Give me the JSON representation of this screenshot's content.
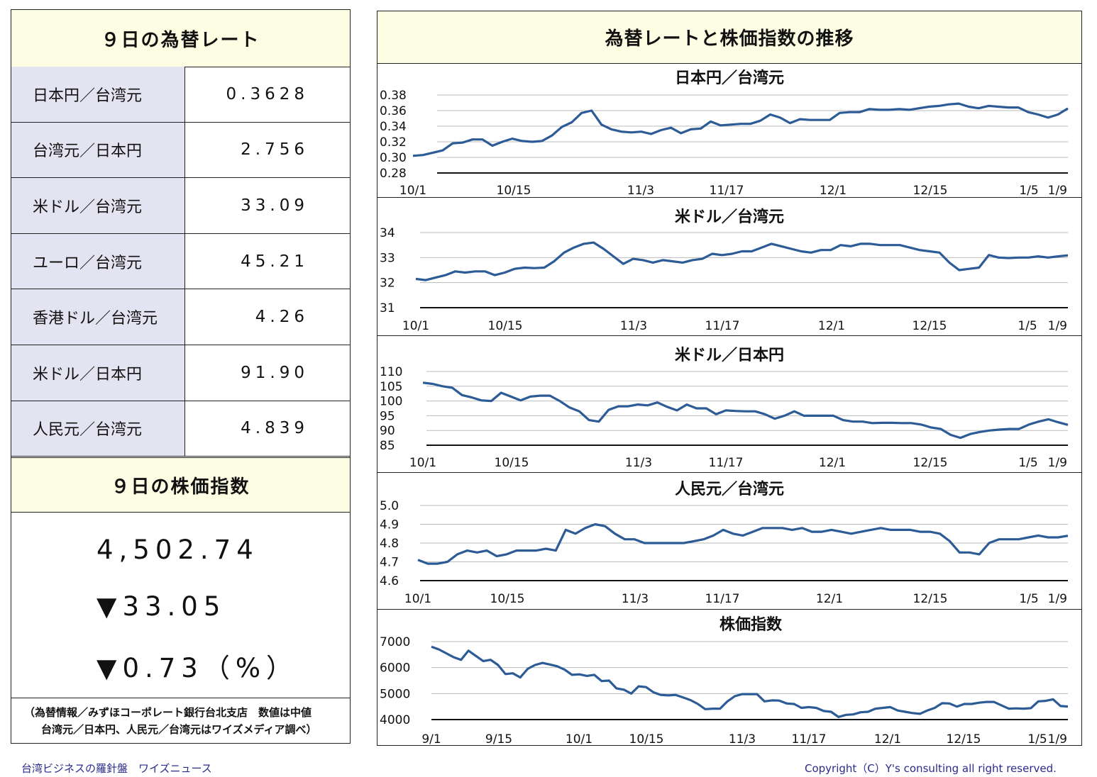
{
  "left_panel": {
    "rates_title": "９日の為替レート",
    "rates": [
      {
        "label": "日本円／台湾元",
        "value": "0.3628"
      },
      {
        "label": "台湾元／日本円",
        "value": "2.756"
      },
      {
        "label": "米ドル／台湾元",
        "value": "33.09"
      },
      {
        "label": "ユーロ／台湾元",
        "value": "45.21"
      },
      {
        "label": "香港ドル／台湾元",
        "value": "4.26"
      },
      {
        "label": "米ドル／日本円",
        "value": "91.90"
      },
      {
        "label": "人民元／台湾元",
        "value": "4.839"
      }
    ],
    "stock_title": "９日の株価指数",
    "stock_value": "4,502.74",
    "stock_change": "▼33.05",
    "stock_change_pct": "▼0.73（%）",
    "note_line1": "（為替情報／みずほコーポレート銀行台北支店　数値は中値",
    "note_line2": "台湾元／日本円、人民元／台湾元はワイズメディア調べ）"
  },
  "right_panel": {
    "title": "為替レートと株価指数の推移"
  },
  "footer": {
    "left": "台湾ビジネスの羅針盤　ワイズニュース",
    "right": "Copyright（C）Y's consulting all right reserved."
  },
  "chart_data": [
    {
      "type": "line",
      "title": "日本円／台湾元",
      "ylim": [
        0.28,
        0.38
      ],
      "yticks": [
        "0.38",
        "0.36",
        "0.34",
        "0.32",
        "0.30",
        "0.28"
      ],
      "xticks": [
        "10/1",
        "10/15",
        "11/3",
        "11/17",
        "12/1",
        "12/15",
        "1/5",
        "1/9"
      ],
      "values": [
        0.302,
        0.303,
        0.306,
        0.309,
        0.318,
        0.319,
        0.323,
        0.323,
        0.315,
        0.32,
        0.324,
        0.321,
        0.32,
        0.321,
        0.328,
        0.339,
        0.345,
        0.357,
        0.36,
        0.342,
        0.336,
        0.333,
        0.332,
        0.333,
        0.33,
        0.335,
        0.338,
        0.331,
        0.336,
        0.337,
        0.346,
        0.341,
        0.342,
        0.343,
        0.343,
        0.347,
        0.355,
        0.351,
        0.344,
        0.349,
        0.348,
        0.348,
        0.348,
        0.357,
        0.358,
        0.358,
        0.362,
        0.361,
        0.361,
        0.362,
        0.361,
        0.363,
        0.365,
        0.366,
        0.368,
        0.369,
        0.365,
        0.363,
        0.366,
        0.365,
        0.364,
        0.364,
        0.358,
        0.355,
        0.351,
        0.355,
        0.3628
      ]
    },
    {
      "type": "line",
      "title": "米ドル／台湾元",
      "ylim": [
        31,
        34
      ],
      "yticks": [
        "34",
        "33",
        "32",
        "31"
      ],
      "xticks": [
        "10/1",
        "10/15",
        "11/3",
        "11/17",
        "12/1",
        "12/15",
        "1/5",
        "1/9"
      ],
      "values": [
        32.15,
        32.1,
        32.2,
        32.3,
        32.45,
        32.4,
        32.45,
        32.45,
        32.3,
        32.4,
        32.55,
        32.6,
        32.58,
        32.6,
        32.85,
        33.2,
        33.4,
        33.55,
        33.6,
        33.35,
        33.05,
        32.75,
        32.95,
        32.9,
        32.8,
        32.9,
        32.85,
        32.8,
        32.9,
        32.95,
        33.15,
        33.1,
        33.15,
        33.25,
        33.25,
        33.4,
        33.55,
        33.45,
        33.35,
        33.25,
        33.2,
        33.3,
        33.3,
        33.5,
        33.45,
        33.55,
        33.55,
        33.5,
        33.5,
        33.5,
        33.4,
        33.3,
        33.25,
        33.2,
        32.8,
        32.5,
        32.55,
        32.6,
        33.1,
        33.0,
        32.98,
        33.0,
        33.0,
        33.05,
        33.0,
        33.05,
        33.09
      ]
    },
    {
      "type": "line",
      "title": "米ドル／日本円",
      "ylim": [
        85,
        110
      ],
      "yticks": [
        "110",
        "105",
        "100",
        "95",
        "90",
        "85"
      ],
      "xticks": [
        "10/1",
        "10/15",
        "11/3",
        "11/17",
        "12/1",
        "12/15",
        "1/5",
        "1/9"
      ],
      "values": [
        106.2,
        105.8,
        105.0,
        104.5,
        102.0,
        101.2,
        100.2,
        100.0,
        102.8,
        101.5,
        100.2,
        101.5,
        101.8,
        101.8,
        100.0,
        97.8,
        96.5,
        93.5,
        93.0,
        97.0,
        98.2,
        98.2,
        98.8,
        98.5,
        99.5,
        98.0,
        96.8,
        98.8,
        97.5,
        97.5,
        95.5,
        96.8,
        96.6,
        96.5,
        96.5,
        95.5,
        94.0,
        95.0,
        96.5,
        95.0,
        95.0,
        95.0,
        95.0,
        93.5,
        93.0,
        93.0,
        92.5,
        92.6,
        92.6,
        92.5,
        92.5,
        92.0,
        91.0,
        90.5,
        88.5,
        87.5,
        88.8,
        89.5,
        90.0,
        90.3,
        90.5,
        90.5,
        92.0,
        93.0,
        93.8,
        92.8,
        91.9
      ]
    },
    {
      "type": "line",
      "title": "人民元／台湾元",
      "ylim": [
        4.6,
        5.0
      ],
      "yticks": [
        "5.0",
        "4.9",
        "4.8",
        "4.7",
        "4.6"
      ],
      "xticks": [
        "10/1",
        "10/15",
        "11/3",
        "11/17",
        "12/1",
        "12/15",
        "1/5",
        "1/9"
      ],
      "values": [
        4.71,
        4.69,
        4.69,
        4.7,
        4.74,
        4.76,
        4.75,
        4.76,
        4.73,
        4.74,
        4.76,
        4.76,
        4.76,
        4.77,
        4.76,
        4.87,
        4.85,
        4.88,
        4.9,
        4.89,
        4.85,
        4.82,
        4.82,
        4.8,
        4.8,
        4.8,
        4.8,
        4.8,
        4.81,
        4.82,
        4.84,
        4.87,
        4.85,
        4.84,
        4.86,
        4.88,
        4.88,
        4.88,
        4.87,
        4.88,
        4.86,
        4.86,
        4.87,
        4.86,
        4.85,
        4.86,
        4.87,
        4.88,
        4.87,
        4.87,
        4.87,
        4.86,
        4.86,
        4.85,
        4.81,
        4.75,
        4.75,
        4.74,
        4.8,
        4.82,
        4.82,
        4.82,
        4.83,
        4.84,
        4.83,
        4.83,
        4.839
      ]
    },
    {
      "type": "line",
      "title": "株価指数",
      "ylim": [
        4000,
        7000
      ],
      "yticks": [
        "7000",
        "6000",
        "5000",
        "4000"
      ],
      "xticks": [
        "9/1",
        "9/15",
        "10/1",
        "10/15",
        "11/3",
        "11/17",
        "12/1",
        "12/15",
        "1/5",
        "1/9"
      ],
      "values": [
        6800,
        6700,
        6550,
        6400,
        6300,
        6650,
        6450,
        6250,
        6300,
        6100,
        5750,
        5780,
        5620,
        5950,
        6100,
        6180,
        6120,
        6050,
        5920,
        5720,
        5740,
        5680,
        5720,
        5480,
        5500,
        5200,
        5150,
        5000,
        5280,
        5250,
        5050,
        4950,
        4930,
        4950,
        4850,
        4750,
        4600,
        4400,
        4420,
        4420,
        4700,
        4900,
        4980,
        4980,
        4980,
        4700,
        4740,
        4730,
        4620,
        4600,
        4450,
        4480,
        4450,
        4330,
        4300,
        4100,
        4180,
        4200,
        4280,
        4300,
        4420,
        4450,
        4480,
        4350,
        4300,
        4250,
        4220,
        4350,
        4450,
        4630,
        4620,
        4500,
        4600,
        4600,
        4650,
        4680,
        4680,
        4550,
        4420,
        4430,
        4420,
        4440,
        4700,
        4720,
        4780,
        4520,
        4502.74
      ]
    }
  ]
}
